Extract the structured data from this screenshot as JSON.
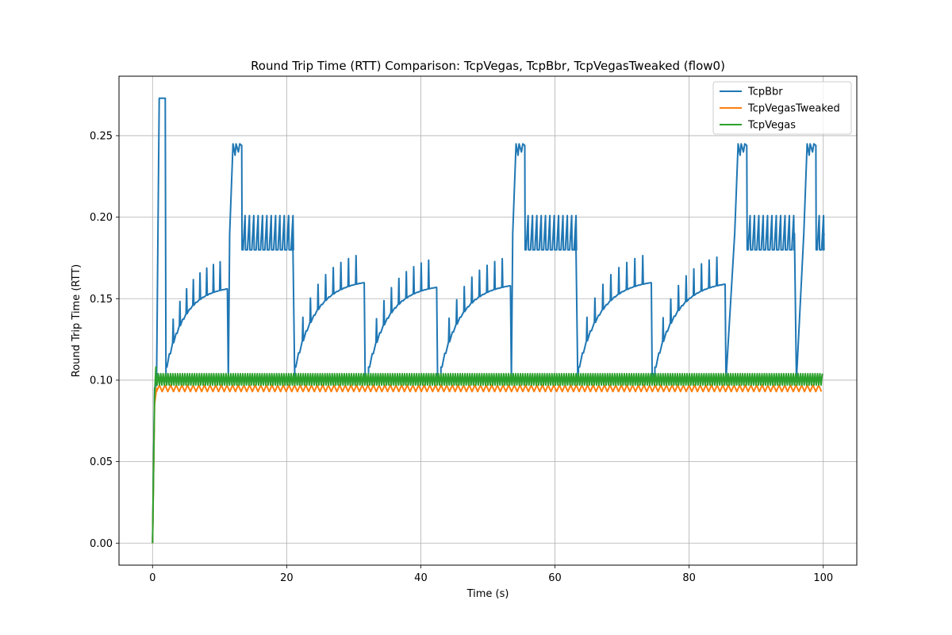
{
  "chart_data": {
    "type": "line",
    "title": "Round Trip Time (RTT) Comparison: TcpVegas, TcpBbr, TcpVegasTweaked (flow0)",
    "xlabel": "Time (s)",
    "ylabel": "Round Trip Time (RTT)",
    "xlim": [
      -5,
      105
    ],
    "ylim": [
      -0.0135,
      0.2865
    ],
    "xticks": [
      0,
      20,
      40,
      60,
      80,
      100
    ],
    "xtick_labels": [
      "0",
      "20",
      "40",
      "60",
      "80",
      "100"
    ],
    "yticks": [
      0.0,
      0.05,
      0.1,
      0.15,
      0.2,
      0.25
    ],
    "ytick_labels": [
      "0.00",
      "0.05",
      "0.10",
      "0.15",
      "0.20",
      "0.25"
    ],
    "grid": true,
    "legend_position": "top-right",
    "series": [
      {
        "name": "TcpBbr",
        "color": "#1f77b4",
        "description": "BBR cycle: drain/probe-bw ramp (0.105 -> ~0.16 with periodic spikes), then probe-rtt plateau ~0.245, then ~0.18 with spikes to 0.20",
        "plateaus_s": [
          [
            12,
            13.3
          ],
          [
            54.2,
            55.5
          ],
          [
            87.3,
            88.6
          ],
          [
            97.6,
            98.9
          ]
        ],
        "startup_peak": {
          "t": [
            1.0,
            1.9
          ],
          "value": 0.273
        },
        "ramp_cycles_s": [
          [
            2.0,
            11.0,
            0.108,
            0.158
          ],
          [
            21.2,
            31.4,
            0.108,
            0.162
          ],
          [
            32.2,
            42.2,
            0.108,
            0.159
          ],
          [
            43.0,
            53.2,
            0.108,
            0.16
          ],
          [
            63.5,
            74.2,
            0.108,
            0.162
          ],
          [
            74.9,
            85.2,
            0.108,
            0.161
          ]
        ],
        "post_plateau_segments_s": [
          [
            13.3,
            20.8
          ],
          [
            55.5,
            63.0
          ],
          [
            88.6,
            95.6
          ],
          [
            98.9,
            100
          ]
        ],
        "base_value_after_plateau": 0.18,
        "spike_value_after_plateau": 0.201
      },
      {
        "name": "TcpVegasTweaked",
        "color": "#ff7f0e",
        "description": "Oscillates between ~0.093 and ~0.097 after startup",
        "low": 0.093,
        "high": 0.097,
        "t_start": 0.6,
        "t_end": 100
      },
      {
        "name": "TcpVegas",
        "color": "#2ca02c",
        "description": "Dense oscillation between ~0.097 and ~0.104 after startup",
        "low": 0.097,
        "high": 0.104,
        "t_start": 0.5,
        "t_end": 100
      }
    ]
  }
}
